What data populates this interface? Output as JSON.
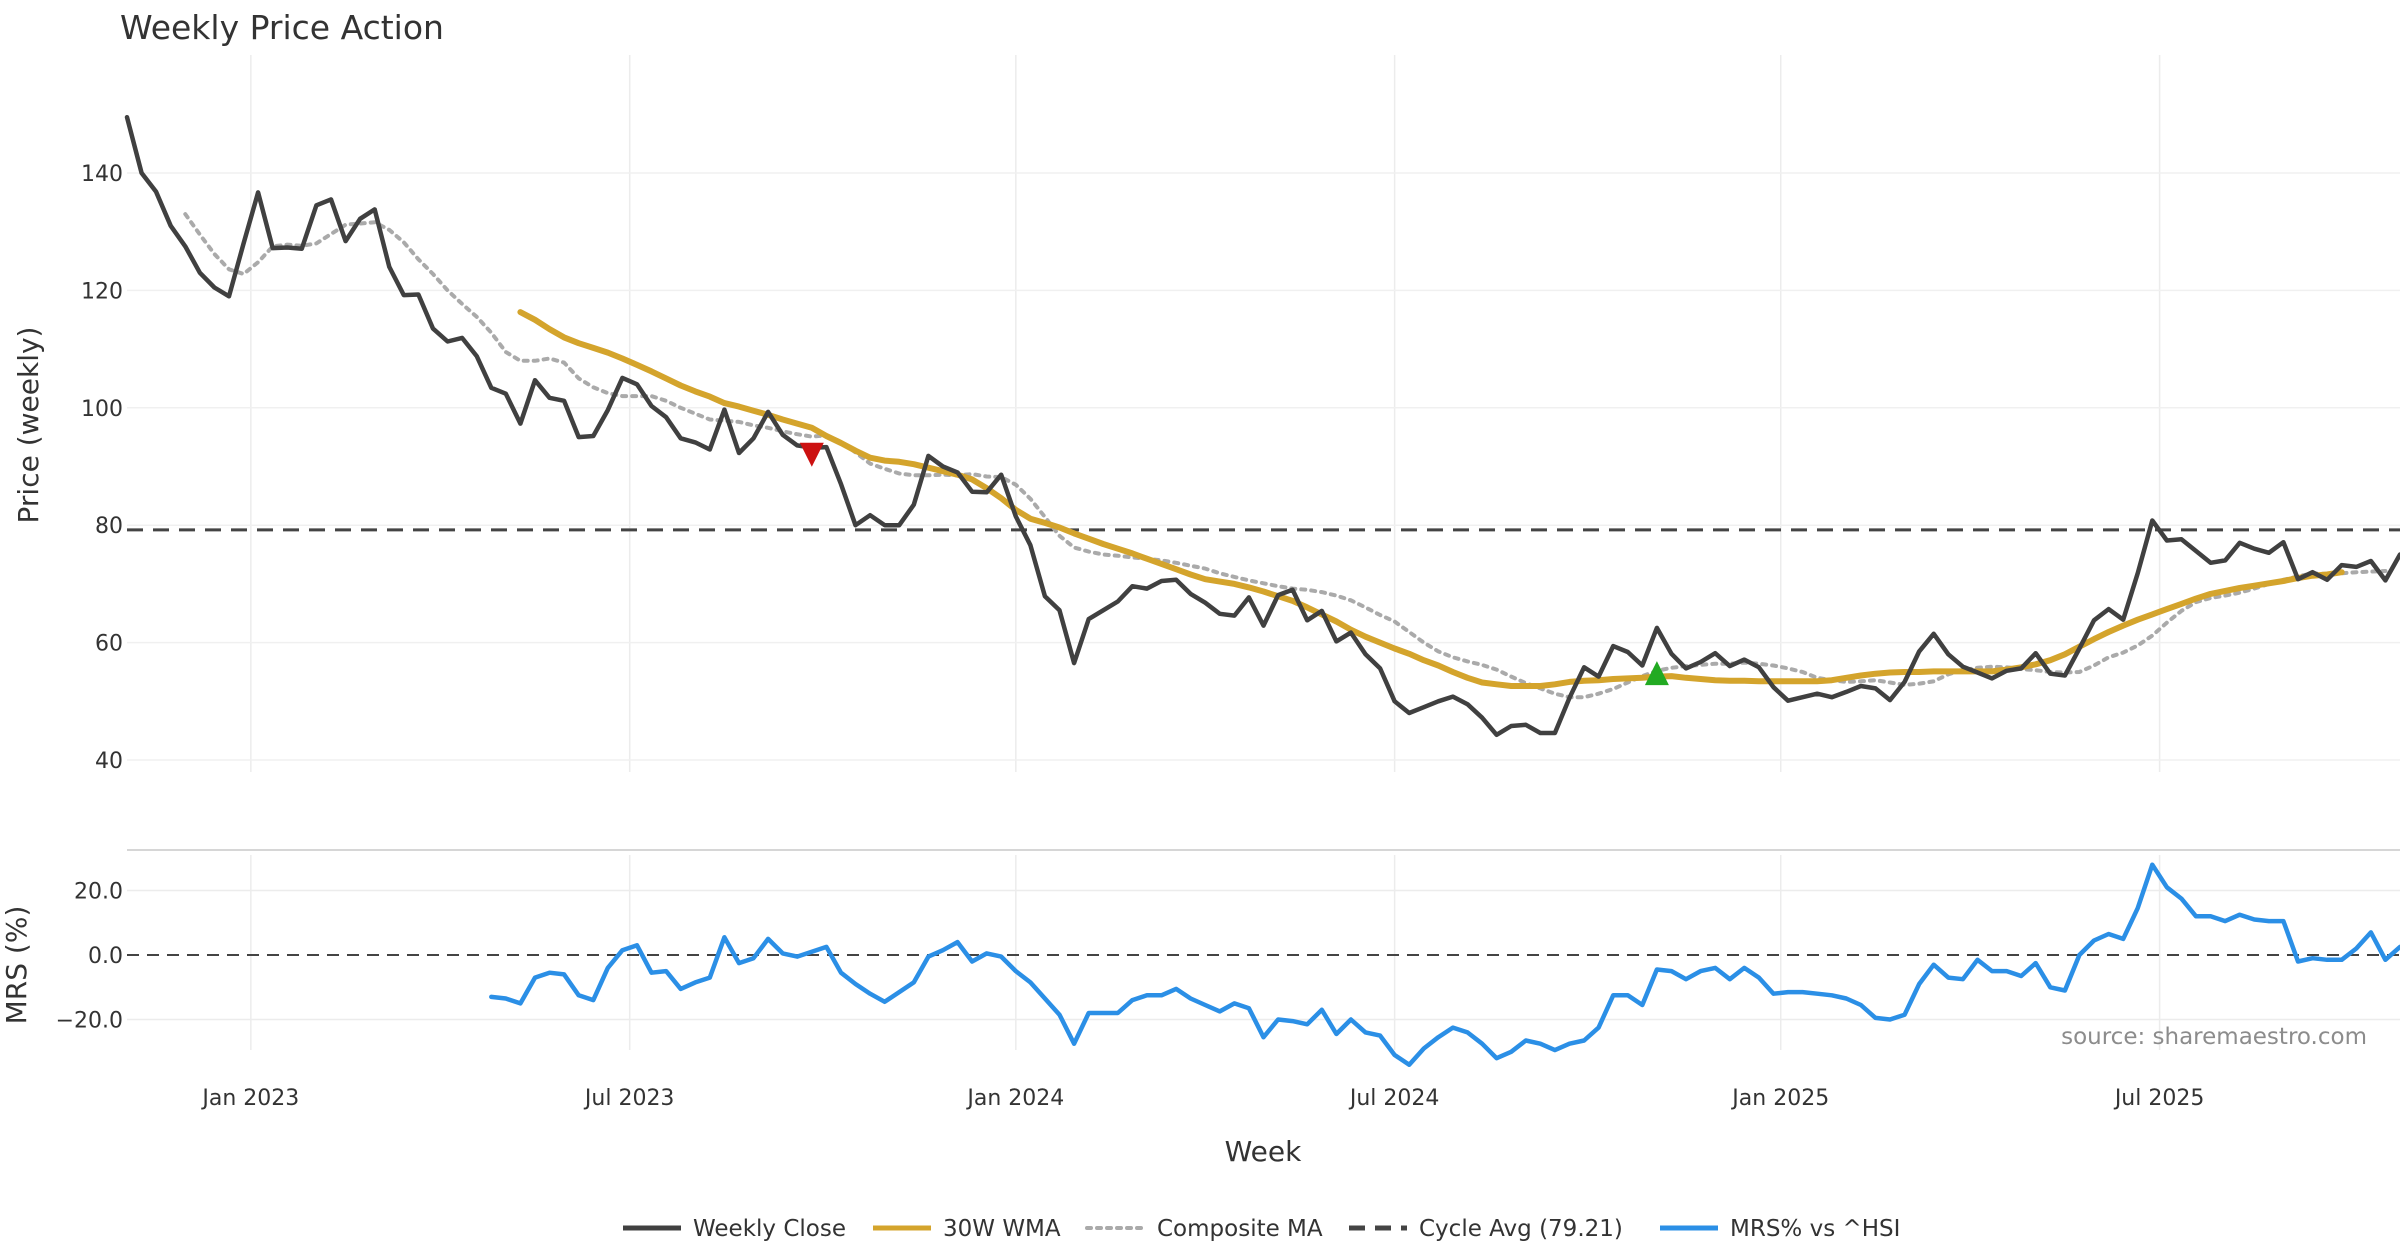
{
  "chart_data": [
    {
      "type": "line",
      "title": "Weekly Price Action",
      "xlabel": "Week",
      "ylabel": "Price (weekly)",
      "ylim": [
        40,
        155
      ],
      "yticks": [
        40,
        60,
        80,
        100,
        120,
        140
      ],
      "xticks": [
        {
          "label": "Jan 2023",
          "week": 8.5
        },
        {
          "label": "Jul 2023",
          "week": 34.5
        },
        {
          "label": "Jan 2024",
          "week": 61
        },
        {
          "label": "Jul 2024",
          "week": 87
        },
        {
          "label": "Jan 2025",
          "week": 113.5
        },
        {
          "label": "Jul 2025",
          "week": 139.5
        }
      ],
      "xlim": [
        0,
        156
      ],
      "grid": true,
      "series": [
        {
          "name": "Weekly Close",
          "color": "#404040",
          "style": "solid",
          "start_week": 0,
          "values": [
            149.5,
            140.0,
            136.8,
            131.0,
            127.5,
            123.0,
            120.5,
            119.0,
            128.0,
            136.7,
            127.2,
            127.3,
            127.1,
            134.5,
            135.5,
            128.4,
            132.2,
            133.8,
            124.0,
            119.2,
            119.3,
            113.5,
            111.3,
            111.9,
            108.8,
            103.4,
            102.4,
            97.3,
            104.7,
            101.7,
            101.2,
            95.0,
            95.2,
            99.6,
            105.1,
            104.0,
            100.3,
            98.4,
            94.8,
            94.1,
            92.9,
            99.7,
            92.3,
            94.8,
            99.3,
            95.4,
            93.6,
            93.2,
            93.3,
            87.0,
            80.0,
            81.7,
            80.0,
            80.0,
            83.5,
            91.8,
            90.0,
            89.0,
            85.7,
            85.6,
            88.6,
            81.5,
            76.6,
            67.9,
            65.5,
            56.5,
            64.0,
            65.5,
            67.0,
            69.6,
            69.2,
            70.5,
            70.7,
            68.3,
            66.8,
            64.9,
            64.6,
            67.7,
            62.9,
            68.1,
            69.0,
            63.8,
            65.4,
            60.2,
            61.7,
            58.0,
            55.6,
            50.0,
            48.0,
            49.0,
            50.0,
            50.8,
            49.5,
            47.2,
            44.3,
            45.8,
            46.0,
            44.6,
            44.6,
            50.6,
            55.8,
            54.2,
            59.4,
            58.4,
            56.1,
            62.5,
            58.1,
            55.6,
            56.7,
            58.2,
            56.0,
            57.1,
            55.8,
            52.4,
            50.1,
            50.7,
            51.3,
            50.7,
            51.6,
            52.6,
            52.2,
            50.2,
            53.3,
            58.5,
            61.5,
            58.0,
            55.9,
            54.9,
            53.9,
            55.2,
            55.6,
            58.2,
            54.7,
            54.4,
            59.0,
            63.8,
            65.7,
            63.9,
            71.8,
            80.8,
            77.4,
            77.6,
            75.6,
            73.6,
            74.0,
            77.0,
            76.0,
            75.3,
            77.1,
            70.8,
            72.0,
            70.7,
            73.2,
            72.9,
            73.9,
            70.6,
            75.0
          ]
        },
        {
          "name": "30W WMA",
          "color": "#d4a42c",
          "style": "solid",
          "start_week": 27,
          "values": [
            116.3,
            115.0,
            113.4,
            112.0,
            111.0,
            110.2,
            109.4,
            108.4,
            107.3,
            106.2,
            105.0,
            103.8,
            102.8,
            101.9,
            100.8,
            100.2,
            99.5,
            98.8,
            98.0,
            97.3,
            96.6,
            95.2,
            94.0,
            92.7,
            91.5,
            91.0,
            90.8,
            90.4,
            89.8,
            89.2,
            88.6,
            87.8,
            86.3,
            84.6,
            82.6,
            81.1,
            80.4,
            79.6,
            78.6,
            77.7,
            76.8,
            76.0,
            75.2,
            74.3,
            73.4,
            72.5,
            71.6,
            70.8,
            70.4,
            70.0,
            69.4,
            68.7,
            67.9,
            67.1,
            66.0,
            64.8,
            63.6,
            62.2,
            61.0,
            60.0,
            59.0,
            58.1,
            57.0,
            56.1,
            55.0,
            54.0,
            53.2,
            52.9,
            52.6,
            52.6,
            52.6,
            52.9,
            53.3,
            53.5,
            53.6,
            53.8,
            53.9,
            54.0,
            54.2,
            54.3,
            54.0,
            53.8,
            53.6,
            53.5,
            53.5,
            53.4,
            53.4,
            53.4,
            53.4,
            53.4,
            53.6,
            54.0,
            54.4,
            54.7,
            54.9,
            55.0,
            55.0,
            55.1,
            55.1,
            55.1,
            55.1,
            55.1,
            55.4,
            55.8,
            56.3,
            57.0,
            58.0,
            59.3,
            60.6,
            61.8,
            62.9,
            63.9,
            64.8,
            65.7,
            66.6,
            67.5,
            68.3,
            68.8,
            69.3,
            69.7,
            70.1,
            70.5,
            71.0,
            71.4,
            71.6,
            72.0
          ]
        },
        {
          "name": "Composite MA",
          "color": "#aaaaaa",
          "style": "dotted",
          "start_week": 4,
          "values": [
            133.0,
            129.5,
            126.2,
            123.6,
            122.8,
            124.8,
            127.5,
            127.8,
            127.6,
            128.0,
            129.6,
            131.2,
            131.4,
            131.6,
            130.3,
            128.2,
            125.3,
            122.8,
            120.0,
            117.7,
            115.5,
            112.8,
            109.5,
            108.0,
            108.0,
            108.4,
            107.7,
            105.0,
            103.5,
            102.5,
            102.0,
            102.0,
            102.0,
            101.2,
            100.0,
            99.0,
            98.0,
            97.8,
            97.6,
            97.0,
            96.6,
            96.0,
            95.5,
            95.1,
            95.3,
            94.2,
            92.4,
            90.5,
            89.6,
            88.8,
            88.5,
            88.5,
            88.6,
            88.5,
            88.7,
            88.3,
            88.2,
            86.9,
            84.5,
            81.4,
            78.2,
            76.2,
            75.5,
            75.0,
            74.8,
            74.5,
            74.3,
            74.0,
            73.6,
            73.1,
            72.6,
            71.8,
            71.2,
            70.6,
            70.1,
            69.6,
            69.2,
            69.0,
            68.6,
            68.0,
            67.2,
            66.0,
            64.7,
            63.6,
            61.8,
            60.0,
            58.5,
            57.5,
            56.8,
            56.2,
            55.4,
            54.2,
            53.1,
            52.2,
            51.3,
            50.7,
            50.7,
            51.3,
            52.1,
            53.2,
            54.3,
            55.2,
            55.7,
            56.0,
            56.2,
            56.4,
            56.4,
            56.6,
            56.4,
            56.1,
            55.6,
            55.0,
            54.0,
            53.6,
            53.3,
            53.4,
            53.6,
            53.2,
            52.8,
            53.0,
            53.4,
            54.6,
            55.3,
            55.7,
            55.9,
            55.8,
            55.5,
            55.3,
            55.0,
            54.9,
            55.0,
            56.1,
            57.5,
            58.3,
            59.5,
            61.2,
            63.4,
            65.4,
            66.9,
            67.6,
            68.0,
            68.5,
            69.2,
            70.0,
            70.7,
            71.3,
            71.8,
            71.7,
            71.8,
            72.0,
            72.1,
            72.2
          ]
        }
      ],
      "reference_lines": [
        {
          "name": "Cycle Avg (79.21)",
          "value": 79.21,
          "color": "#444444",
          "style": "dashed"
        }
      ],
      "markers": [
        {
          "name": "sell-signal",
          "week": 47,
          "value": 92,
          "shape": "triangle-down",
          "color": "#cc1111"
        },
        {
          "name": "buy-signal",
          "week": 105,
          "value": 54.8,
          "shape": "triangle-up",
          "color": "#22aa22"
        }
      ]
    },
    {
      "type": "line",
      "ylabel": "MRS (%)",
      "ylim": [
        -37,
        33
      ],
      "yticks": [
        -20,
        0,
        20
      ],
      "ytick_labels": [
        "−20.0",
        "0.0",
        "20.0"
      ],
      "xlim": [
        0,
        156
      ],
      "series": [
        {
          "name": "MRS% vs ^HSI",
          "color": "#2b8fe6",
          "style": "solid",
          "start_week": 25,
          "values": [
            -13.0,
            -13.5,
            -15.0,
            -7.0,
            -5.5,
            -6.0,
            -12.5,
            -14.0,
            -4.0,
            1.5,
            3.0,
            -5.5,
            -5.0,
            -10.5,
            -8.5,
            -7.0,
            5.5,
            -2.5,
            -1.0,
            5.0,
            0.5,
            -0.5,
            1.0,
            2.5,
            -5.5,
            -9.0,
            -12.0,
            -14.5,
            -11.5,
            -8.5,
            -0.5,
            1.5,
            4.0,
            -2.0,
            0.5,
            -0.5,
            -5.0,
            -8.5,
            -13.5,
            -18.5,
            -27.5,
            -18.0,
            -18.0,
            -18.0,
            -14.0,
            -12.5,
            -12.5,
            -10.5,
            -13.5,
            -15.5,
            -17.5,
            -15.0,
            -16.5,
            -25.5,
            -20.0,
            -20.5,
            -21.5,
            -17.0,
            -24.5,
            -20.0,
            -24.0,
            -25.0,
            -31.0,
            -34.0,
            -29.0,
            -25.5,
            -22.5,
            -24.0,
            -27.5,
            -32.0,
            -30.0,
            -26.5,
            -27.5,
            -29.5,
            -27.5,
            -26.5,
            -22.5,
            -12.5,
            -12.5,
            -15.5,
            -4.5,
            -5.0,
            -7.5,
            -5.0,
            -4.0,
            -7.5,
            -4.0,
            -7.0,
            -12.0,
            -11.5,
            -11.5,
            -12.0,
            -12.5,
            -13.5,
            -15.5,
            -19.5,
            -20.0,
            -18.5,
            -9.0,
            -3.0,
            -7.0,
            -7.5,
            -1.5,
            -5.0,
            -5.0,
            -6.5,
            -2.5,
            -10.0,
            -11.0,
            0.0,
            4.5,
            6.5,
            5.0,
            14.5,
            28.0,
            21.0,
            17.5,
            12.0,
            12.0,
            10.5,
            12.5,
            11.0,
            10.5,
            10.5,
            -2.0,
            -1.0,
            -1.5,
            -1.5,
            2.0,
            7.0,
            -1.5,
            2.5
          ]
        }
      ],
      "reference_lines": [
        {
          "name": "zero",
          "value": 0,
          "color": "#444444",
          "style": "dashed"
        }
      ]
    }
  ],
  "legend": {
    "placement": "bottom-center",
    "items": [
      {
        "label": "Weekly Close",
        "color": "#404040",
        "style": "solid"
      },
      {
        "label": "30W WMA",
        "color": "#d4a42c",
        "style": "solid"
      },
      {
        "label": "Composite MA",
        "color": "#aaaaaa",
        "style": "dotted"
      },
      {
        "label": "Cycle Avg (79.21)",
        "color": "#444444",
        "style": "dashed"
      },
      {
        "label": "MRS% vs ^HSI",
        "color": "#2b8fe6",
        "style": "solid"
      }
    ]
  },
  "source_note": "source: sharemaestro.com"
}
